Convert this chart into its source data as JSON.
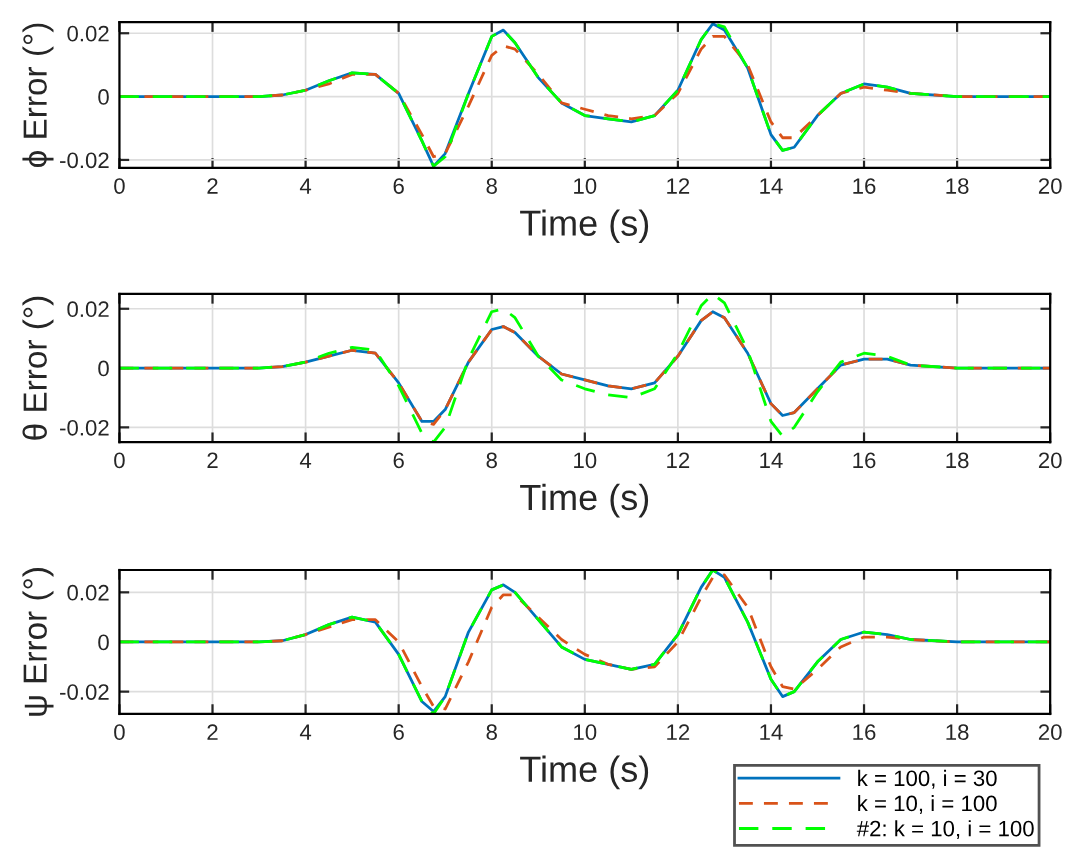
{
  "chart_data": [
    {
      "type": "line",
      "xlabel": "Time (s)",
      "ylabel": "ϕ Error (°)",
      "xlim": [
        0,
        20
      ],
      "xticks": [
        0,
        2,
        4,
        6,
        8,
        10,
        12,
        14,
        16,
        18,
        20
      ],
      "ylim": [
        -0.0225,
        0.0235
      ],
      "yticks": [
        -0.02,
        0,
        0.02
      ],
      "grid": true,
      "legend": false,
      "x": [
        0,
        1,
        2,
        3,
        3.5,
        4,
        4.5,
        5,
        5.5,
        6,
        6.5,
        6.75,
        7,
        7.5,
        8,
        8.25,
        8.5,
        9,
        9.5,
        10,
        10.5,
        11,
        11.5,
        12,
        12.5,
        12.75,
        13,
        13.5,
        14,
        14.25,
        14.5,
        15,
        15.5,
        16,
        16.5,
        17,
        18,
        19,
        20
      ],
      "series": [
        {
          "color": "#0072bd",
          "line_style": "solid",
          "values": [
            0,
            0,
            0,
            0,
            0.0005,
            0.002,
            0.005,
            0.0075,
            0.007,
            0.001,
            -0.014,
            -0.022,
            -0.018,
            0.001,
            0.019,
            0.021,
            0.017,
            0.006,
            -0.002,
            -0.006,
            -0.007,
            -0.008,
            -0.006,
            0.002,
            0.018,
            0.023,
            0.021,
            0.009,
            -0.012,
            -0.017,
            -0.016,
            -0.006,
            0.001,
            0.004,
            0.003,
            0.001,
            0,
            0,
            0
          ]
        },
        {
          "color": "#d95319",
          "line_style": "dashed",
          "values": [
            0,
            0,
            0,
            0,
            0.0005,
            0.002,
            0.004,
            0.007,
            0.007,
            0.001,
            -0.012,
            -0.019,
            -0.018,
            -0.003,
            0.013,
            0.016,
            0.015,
            0.007,
            -0.002,
            -0.004,
            -0.006,
            -0.007,
            -0.006,
            0.001,
            0.015,
            0.019,
            0.019,
            0.01,
            -0.008,
            -0.013,
            -0.013,
            -0.006,
            0.001,
            0.003,
            0.002,
            0.001,
            0,
            0,
            0
          ]
        },
        {
          "color": "#00ff00",
          "line_style": "dashed",
          "values": [
            0,
            0,
            0,
            0,
            0.0005,
            0.002,
            0.005,
            0.0075,
            0.007,
            0.001,
            -0.014,
            -0.022,
            -0.019,
            0.001,
            0.019,
            0.021,
            0.017,
            0.006,
            -0.002,
            -0.006,
            -0.007,
            -0.008,
            -0.006,
            0.002,
            0.018,
            0.023,
            0.022,
            0.009,
            -0.012,
            -0.017,
            -0.016,
            -0.006,
            0.001,
            0.004,
            0.003,
            0.001,
            0,
            0,
            0
          ]
        }
      ]
    },
    {
      "type": "line",
      "xlabel": "Time (s)",
      "ylabel": "θ Error (°)",
      "xlim": [
        0,
        20
      ],
      "xticks": [
        0,
        2,
        4,
        6,
        8,
        10,
        12,
        14,
        16,
        18,
        20
      ],
      "ylim": [
        -0.025,
        0.025
      ],
      "yticks": [
        -0.02,
        0,
        0.02
      ],
      "grid": true,
      "legend": false,
      "x": [
        0,
        1,
        2,
        3,
        3.5,
        4,
        4.5,
        5,
        5.5,
        6,
        6.5,
        6.75,
        7,
        7.5,
        8,
        8.25,
        8.5,
        9,
        9.5,
        10,
        10.5,
        11,
        11.5,
        12,
        12.5,
        12.75,
        13,
        13.5,
        14,
        14.25,
        14.5,
        15,
        15.5,
        16,
        16.5,
        17,
        18,
        19,
        20
      ],
      "series": [
        {
          "color": "#0072bd",
          "line_style": "solid",
          "values": [
            0,
            0,
            0,
            0,
            0.0005,
            0.002,
            0.004,
            0.006,
            0.005,
            -0.005,
            -0.018,
            -0.018,
            -0.014,
            0.002,
            0.013,
            0.014,
            0.012,
            0.004,
            -0.002,
            -0.004,
            -0.006,
            -0.007,
            -0.005,
            0.004,
            0.016,
            0.019,
            0.017,
            0.005,
            -0.012,
            -0.016,
            -0.015,
            -0.007,
            0.001,
            0.003,
            0.003,
            0.001,
            0,
            0,
            0
          ]
        },
        {
          "color": "#d95319",
          "line_style": "dashed",
          "values": [
            0,
            0,
            0,
            0,
            0.0005,
            0.002,
            0.004,
            0.006,
            0.005,
            -0.005,
            -0.018,
            -0.019,
            -0.014,
            0.002,
            0.013,
            0.014,
            0.012,
            0.004,
            -0.002,
            -0.004,
            -0.006,
            -0.007,
            -0.005,
            0.004,
            0.016,
            0.019,
            0.017,
            0.005,
            -0.012,
            -0.016,
            -0.015,
            -0.007,
            0.001,
            0.003,
            0.003,
            0.001,
            0,
            0,
            0
          ]
        },
        {
          "color": "#00ff00",
          "line_style": "dashed",
          "values": [
            0,
            0,
            0,
            0,
            0.0005,
            0.002,
            0.005,
            0.007,
            0.006,
            -0.006,
            -0.022,
            -0.025,
            -0.02,
            0.003,
            0.019,
            0.02,
            0.017,
            0.004,
            -0.004,
            -0.007,
            -0.009,
            -0.01,
            -0.007,
            0.005,
            0.021,
            0.025,
            0.022,
            0.006,
            -0.018,
            -0.023,
            -0.02,
            -0.008,
            0.002,
            0.005,
            0.004,
            0.001,
            0,
            0,
            0
          ]
        }
      ]
    },
    {
      "type": "line",
      "xlabel": "Time (s)",
      "ylabel": "ψ Error (°)",
      "xlim": [
        0,
        20
      ],
      "xticks": [
        0,
        2,
        4,
        6,
        8,
        10,
        12,
        14,
        16,
        18,
        20
      ],
      "ylim": [
        -0.029,
        0.029
      ],
      "yticks": [
        -0.02,
        0,
        0.02
      ],
      "grid": true,
      "legend": "bottom right",
      "x": [
        0,
        1,
        2,
        3,
        3.5,
        4,
        4.5,
        5,
        5.5,
        6,
        6.5,
        6.75,
        7,
        7.5,
        8,
        8.25,
        8.5,
        9,
        9.5,
        10,
        10.5,
        11,
        11.5,
        12,
        12.5,
        12.75,
        13,
        13.5,
        14,
        14.25,
        14.5,
        15,
        15.5,
        16,
        16.5,
        17,
        18,
        19,
        20
      ],
      "series": [
        {
          "name": "k = 100, i = 30",
          "color": "#0072bd",
          "line_style": "solid",
          "values": [
            0,
            0,
            0,
            0,
            0.0005,
            0.003,
            0.007,
            0.01,
            0.008,
            -0.005,
            -0.024,
            -0.028,
            -0.022,
            0.004,
            0.021,
            0.023,
            0.02,
            0.009,
            -0.002,
            -0.007,
            -0.009,
            -0.011,
            -0.009,
            0.003,
            0.022,
            0.029,
            0.026,
            0.008,
            -0.015,
            -0.022,
            -0.02,
            -0.008,
            0.001,
            0.004,
            0.003,
            0.001,
            0,
            0,
            0
          ]
        },
        {
          "name": "k = 10, i = 100",
          "color": "#d95319",
          "line_style": "dashed",
          "values": [
            0,
            0,
            0,
            0,
            0.0005,
            0.003,
            0.006,
            0.009,
            0.009,
            0,
            -0.018,
            -0.026,
            -0.027,
            -0.008,
            0.014,
            0.019,
            0.019,
            0.01,
            0.001,
            -0.005,
            -0.009,
            -0.011,
            -0.01,
            0,
            0.018,
            0.026,
            0.027,
            0.014,
            -0.01,
            -0.018,
            -0.019,
            -0.011,
            -0.002,
            0.002,
            0.002,
            0.001,
            0,
            0,
            0
          ]
        },
        {
          "name": "#2: k = 10, i = 100",
          "color": "#00ff00",
          "line_style": "dashed",
          "values": [
            0,
            0,
            0,
            0,
            0.0005,
            0.003,
            0.007,
            0.01,
            0.008,
            -0.005,
            -0.024,
            -0.029,
            -0.022,
            0.004,
            0.021,
            0.023,
            0.02,
            0.009,
            -0.002,
            -0.007,
            -0.009,
            -0.011,
            -0.009,
            0.003,
            0.022,
            0.029,
            0.026,
            0.008,
            -0.015,
            -0.022,
            -0.02,
            -0.008,
            0.001,
            0.004,
            0.003,
            0.001,
            0,
            0,
            0
          ]
        }
      ]
    }
  ]
}
